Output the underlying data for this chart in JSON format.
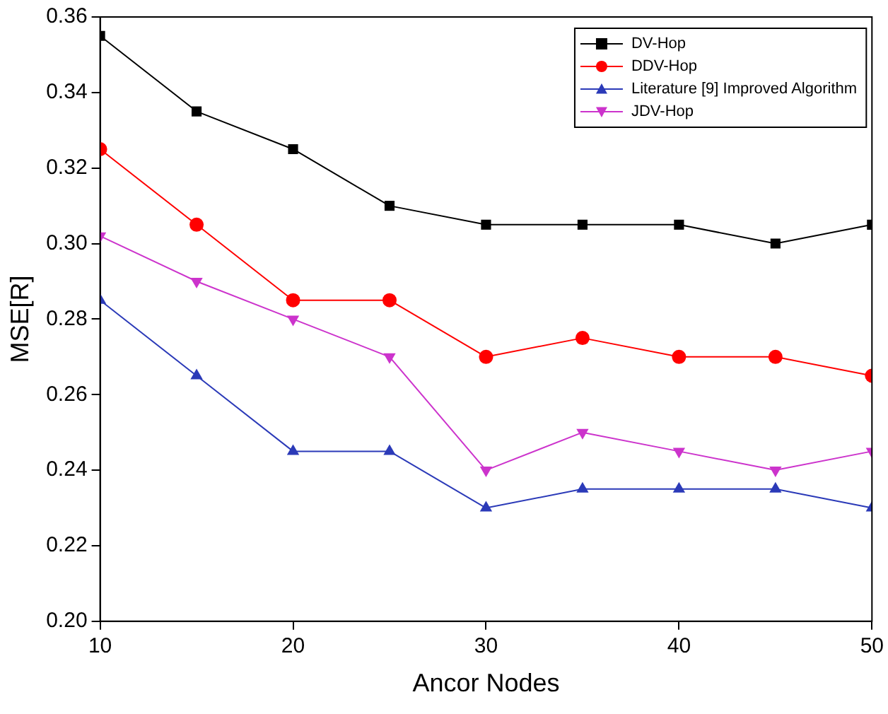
{
  "chart_data": {
    "type": "line",
    "xlabel": "Ancor Nodes",
    "ylabel": "MSE[R]",
    "x": [
      10,
      15,
      20,
      25,
      30,
      35,
      40,
      45,
      50
    ],
    "xlim": [
      10,
      50
    ],
    "xticks": [
      10,
      20,
      30,
      40,
      50
    ],
    "ylim": [
      0.2,
      0.36
    ],
    "yticks": [
      {
        "value": 0.2,
        "label": "0.20"
      },
      {
        "value": 0.22,
        "label": "0.22"
      },
      {
        "value": 0.24,
        "label": "0.24"
      },
      {
        "value": 0.26,
        "label": "0.26"
      },
      {
        "value": 0.28,
        "label": "0.28"
      },
      {
        "value": 0.3,
        "label": "0.30"
      },
      {
        "value": 0.32,
        "label": "0.32"
      },
      {
        "value": 0.34,
        "label": "0.34"
      },
      {
        "value": 0.36,
        "label": "0.36"
      }
    ],
    "grid": false,
    "legend": "top right",
    "line_style": "solid",
    "series": [
      {
        "name": "DV-Hop",
        "color": "#000000",
        "marker": "square",
        "values": [
          0.355,
          0.335,
          0.325,
          0.31,
          0.305,
          0.305,
          0.305,
          0.3,
          0.305
        ]
      },
      {
        "name": "DDV-Hop",
        "color": "#ff0000",
        "marker": "circle",
        "values": [
          0.325,
          0.305,
          0.285,
          0.285,
          0.27,
          0.275,
          0.27,
          0.27,
          0.265
        ]
      },
      {
        "name": "Literature [9] Improved Algorithm",
        "color": "#2b3ab8",
        "marker": "triangle",
        "values": [
          0.285,
          0.265,
          0.245,
          0.245,
          0.23,
          0.235,
          0.235,
          0.235,
          0.23
        ]
      },
      {
        "name": "JDV-Hop",
        "color": "#cc33cc",
        "marker": "triangle-down",
        "values": [
          0.302,
          0.29,
          0.28,
          0.27,
          0.24,
          0.25,
          0.245,
          0.24,
          0.245
        ]
      }
    ]
  }
}
